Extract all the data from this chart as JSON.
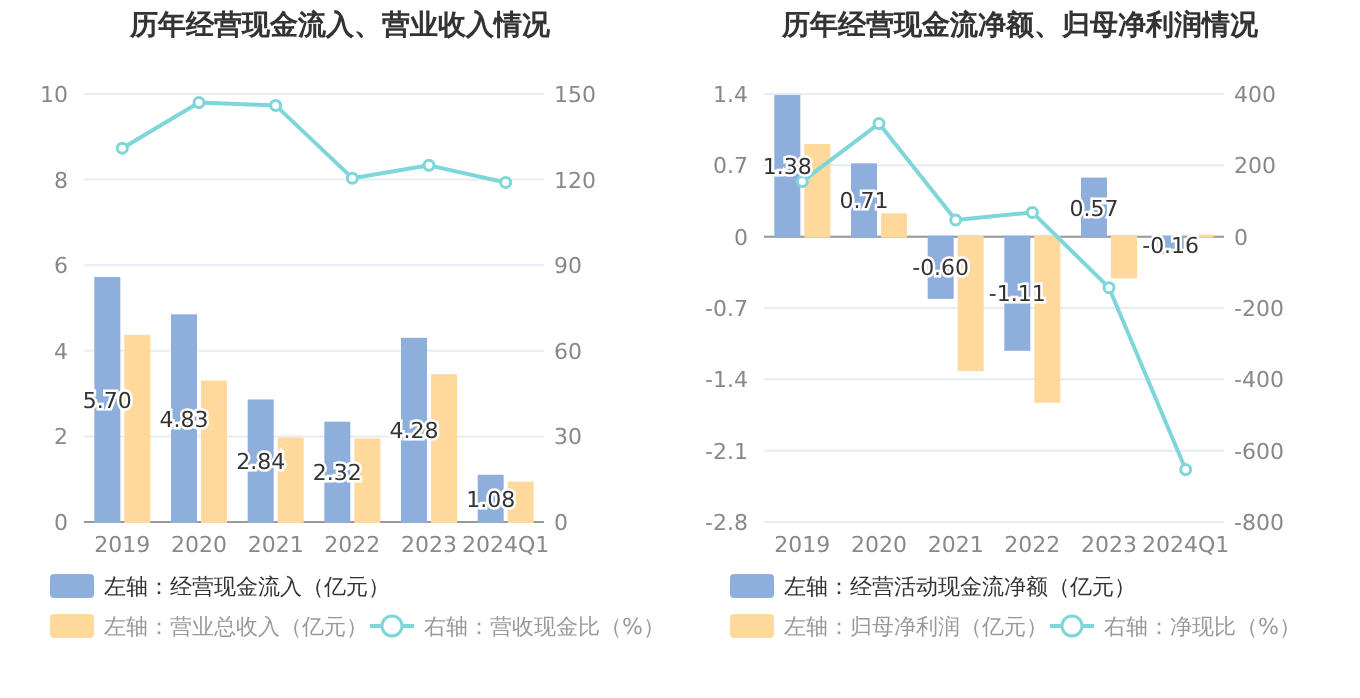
{
  "chart_data": [
    {
      "type": "bar",
      "title": "历年经营现金流入、营业收入情况",
      "categories": [
        "2019",
        "2020",
        "2021",
        "2022",
        "2023",
        "2024Q1"
      ],
      "series": [
        {
          "name": "左轴：经营现金流入（亿元）",
          "color": "#8eaedc",
          "values": [
            5.7,
            4.83,
            2.84,
            2.32,
            4.28,
            1.08
          ],
          "value_labels": [
            "5.70",
            "4.83",
            "2.84",
            "2.32",
            "4.28",
            "1.08"
          ]
        },
        {
          "name": "左轴：营业总收入（亿元）",
          "color": "#ffd99b",
          "values": [
            4.35,
            3.28,
            1.95,
            1.93,
            3.43,
            0.92
          ]
        },
        {
          "name": "右轴：营收现金比（%）",
          "type": "line",
          "axis": "y2",
          "color": "#7fd6d8",
          "marker": "circle",
          "values": [
            131,
            147,
            146,
            120.5,
            125,
            119
          ]
        }
      ],
      "ylim": [
        0,
        10
      ],
      "yticks": [
        0,
        2,
        4,
        6,
        8,
        10
      ],
      "y2lim": [
        0,
        150
      ],
      "y2ticks": [
        0,
        30,
        60,
        90,
        120,
        150
      ],
      "grid": "y",
      "legend": "bottom"
    },
    {
      "type": "bar",
      "title": "历年经营现金流净额、归母净利润情况",
      "categories": [
        "2019",
        "2020",
        "2021",
        "2022",
        "2023",
        "2024Q1"
      ],
      "series": [
        {
          "name": "左轴：经营活动现金流净额（亿元）",
          "color": "#8eaedc",
          "values": [
            1.38,
            0.71,
            -0.6,
            -1.11,
            0.57,
            -0.16
          ],
          "value_labels": [
            "1.38",
            "0.71",
            "-0.60",
            "-1.11",
            "0.57",
            "-0.16"
          ]
        },
        {
          "name": "左轴：归母净利润（亿元）",
          "color": "#ffd99b",
          "values": [
            0.9,
            0.22,
            -1.31,
            -1.62,
            -0.4,
            0.01
          ]
        },
        {
          "name": "右轴：净现比（%）",
          "type": "line",
          "axis": "y2",
          "color": "#7fd6d8",
          "marker": "circle",
          "values": [
            155,
            317,
            47,
            68,
            -143,
            -653
          ]
        }
      ],
      "ylim": [
        -2.8,
        1.4
      ],
      "yticks": [
        -2.8,
        -2.1,
        -1.4,
        -0.7,
        0,
        0.7,
        1.4
      ],
      "y2lim": [
        -800,
        400
      ],
      "y2ticks": [
        -800,
        -600,
        -400,
        -200,
        0,
        200,
        400
      ],
      "grid": "y",
      "legend": "bottom"
    }
  ]
}
